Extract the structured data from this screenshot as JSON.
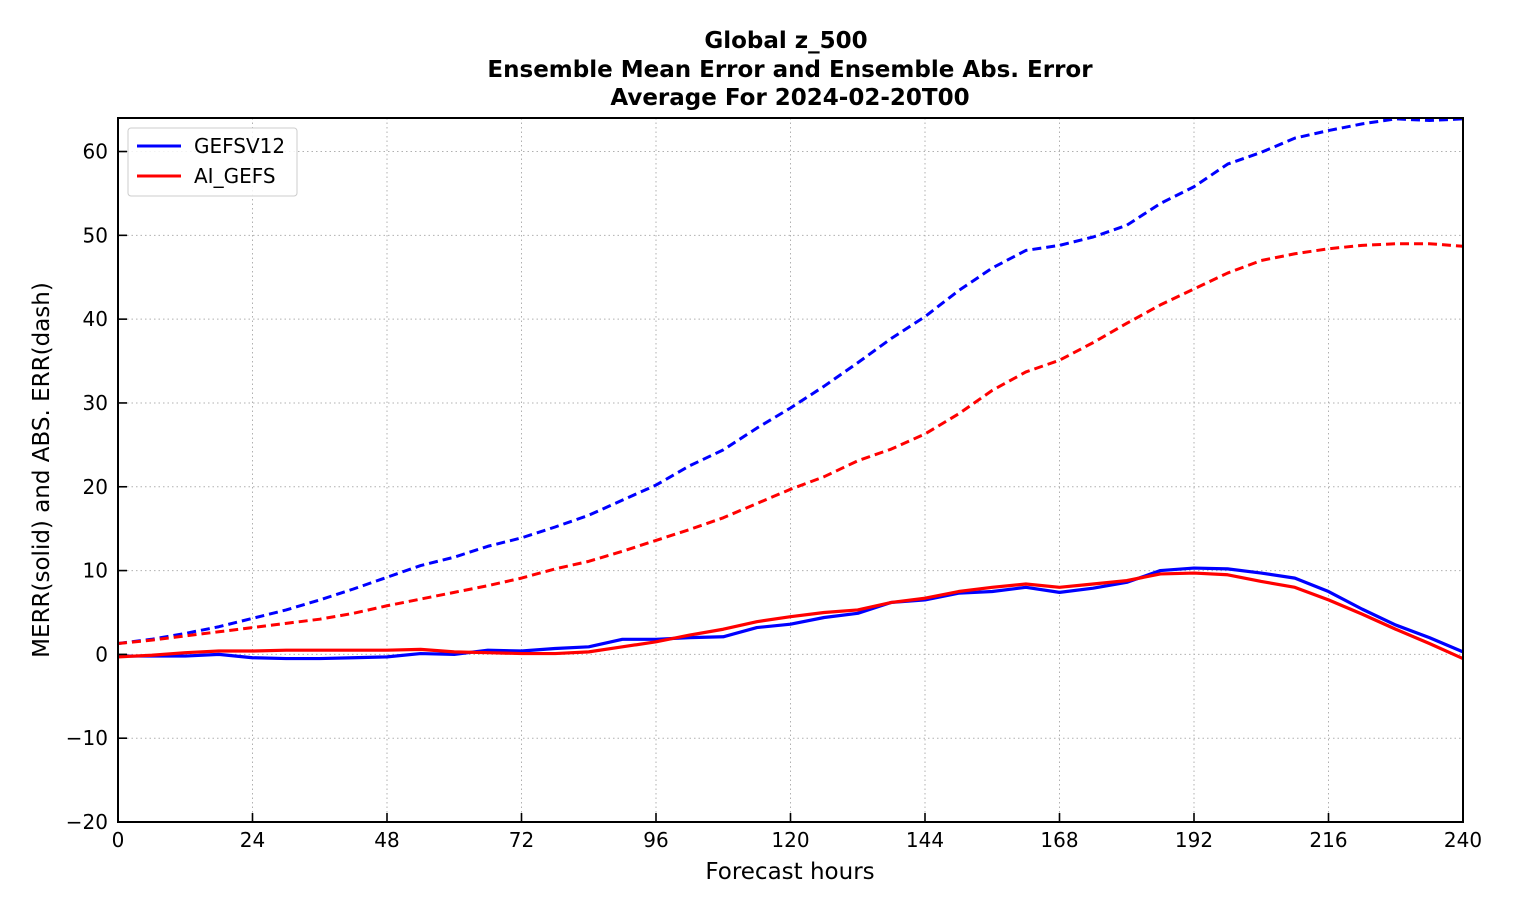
{
  "chart_data": {
    "type": "line",
    "title_lines": [
      "Global z_500",
      "Ensemble Mean Error and Ensemble Abs. Error",
      "Average For 2024-02-20T00"
    ],
    "xlabel": "Forecast hours",
    "ylabel": "MERR(solid) and ABS. ERR(dash)",
    "xlim": [
      0,
      240
    ],
    "ylim": [
      -20,
      64
    ],
    "xticks": [
      0,
      24,
      48,
      72,
      96,
      120,
      144,
      168,
      192,
      216,
      240
    ],
    "yticks": [
      -20,
      -10,
      0,
      10,
      20,
      30,
      40,
      50,
      60
    ],
    "ytick_labels": [
      "−20",
      "−10",
      "0",
      "10",
      "20",
      "30",
      "40",
      "50",
      "60"
    ],
    "grid": true,
    "legend_position": "top-left",
    "x": [
      0,
      6,
      12,
      18,
      24,
      30,
      36,
      42,
      48,
      54,
      60,
      66,
      72,
      78,
      84,
      90,
      96,
      102,
      108,
      114,
      120,
      126,
      132,
      138,
      144,
      150,
      156,
      162,
      168,
      174,
      180,
      186,
      192,
      198,
      204,
      210,
      216,
      222,
      228,
      234,
      240
    ],
    "series": [
      {
        "name": "GEFSV12",
        "color": "#0000ff",
        "merr": [
          -0.2,
          -0.2,
          -0.2,
          0.0,
          -0.4,
          -0.5,
          -0.5,
          -0.4,
          -0.3,
          0.1,
          0.0,
          0.5,
          0.4,
          0.7,
          0.9,
          1.8,
          1.8,
          2.0,
          2.1,
          3.2,
          3.6,
          4.4,
          4.9,
          6.2,
          6.5,
          7.3,
          7.5,
          8.0,
          7.4,
          7.9,
          8.6,
          10.0,
          10.3,
          10.2,
          9.7,
          9.1,
          7.5,
          5.4,
          3.5,
          2.0,
          0.3
        ],
        "abs_err": [
          1.3,
          1.8,
          2.5,
          3.3,
          4.3,
          5.3,
          6.5,
          7.8,
          9.2,
          10.6,
          11.6,
          12.9,
          13.9,
          15.2,
          16.6,
          18.4,
          20.2,
          22.5,
          24.4,
          27.0,
          29.4,
          32.0,
          34.8,
          37.7,
          40.3,
          43.4,
          46.1,
          48.2,
          48.8,
          49.8,
          51.2,
          53.8,
          55.8,
          58.5,
          59.9,
          61.6,
          62.5,
          63.3,
          63.9,
          63.7,
          63.9
        ]
      },
      {
        "name": "AI_GEFS",
        "color": "#ff0000",
        "merr": [
          -0.3,
          -0.1,
          0.2,
          0.4,
          0.4,
          0.5,
          0.5,
          0.5,
          0.5,
          0.6,
          0.3,
          0.2,
          0.1,
          0.1,
          0.3,
          0.9,
          1.5,
          2.3,
          3.0,
          3.9,
          4.5,
          5.0,
          5.3,
          6.2,
          6.7,
          7.5,
          8.0,
          8.4,
          8.0,
          8.4,
          8.8,
          9.6,
          9.7,
          9.5,
          8.7,
          8.0,
          6.5,
          4.8,
          3.0,
          1.3,
          -0.5
        ],
        "abs_err": [
          1.3,
          1.7,
          2.2,
          2.7,
          3.2,
          3.7,
          4.2,
          4.9,
          5.8,
          6.6,
          7.4,
          8.2,
          9.1,
          10.2,
          11.1,
          12.3,
          13.6,
          14.9,
          16.3,
          18.0,
          19.7,
          21.2,
          23.1,
          24.5,
          26.3,
          28.7,
          31.5,
          33.7,
          35.1,
          37.2,
          39.5,
          41.7,
          43.6,
          45.5,
          47.0,
          47.8,
          48.4,
          48.8,
          49.0,
          49.0,
          48.7
        ]
      }
    ]
  }
}
